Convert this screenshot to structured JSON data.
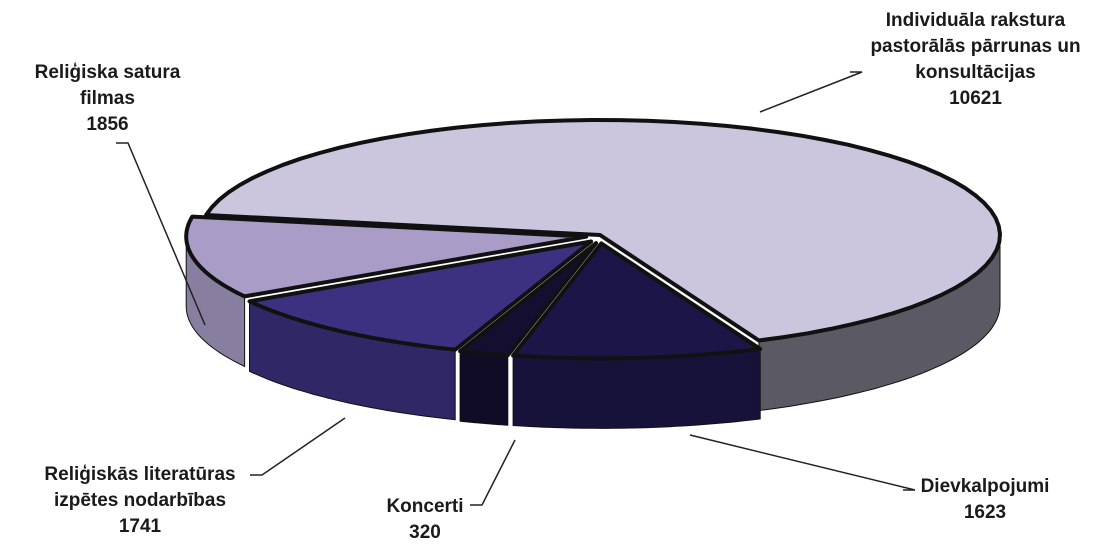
{
  "chart_data": {
    "type": "pie",
    "categories": [
      "Individuāla rakstura pastorālās pārrunas un konsultācijas",
      "Dievkalpojumi",
      "Koncerti",
      "Reliģiskās literatūras izpētes nodarbības",
      "Reliģiska satura filmas"
    ],
    "values": [
      10621,
      1623,
      320,
      1741,
      1856
    ],
    "colors": [
      "#cbc5de",
      "#1c1648",
      "#140f30",
      "#3b3180",
      "#a99dc8"
    ]
  }
}
